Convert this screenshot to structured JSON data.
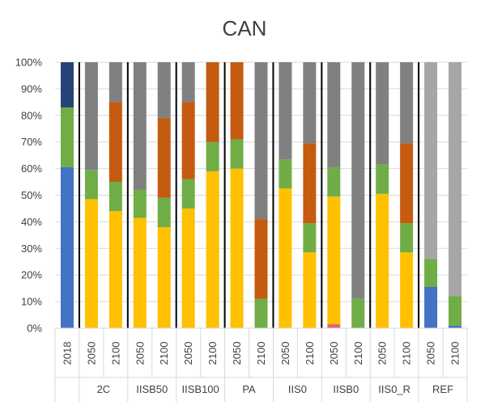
{
  "chart_data": {
    "type": "bar",
    "stacked": "percent",
    "title": "CAN",
    "ylim": [
      0,
      100
    ],
    "y_ticks": [
      "0%",
      "10%",
      "20%",
      "30%",
      "40%",
      "50%",
      "60%",
      "70%",
      "80%",
      "90%",
      "100%"
    ],
    "grid": true,
    "legend": "none",
    "colors": [
      "#4472c4",
      "#e06666",
      "#ffc000",
      "#70ad47",
      "#c55a11",
      "#808080",
      "#a6a6a6",
      "#264478"
    ],
    "categories": [
      {
        "group": "",
        "year": "2018",
        "values": [
          60.5,
          0,
          0,
          22.5,
          0,
          0,
          0,
          17
        ]
      },
      {
        "group": "2C",
        "year": "2050",
        "values": [
          0,
          0,
          48.5,
          11,
          0,
          40.5,
          0,
          0
        ]
      },
      {
        "group": "2C",
        "year": "2100",
        "values": [
          0,
          0,
          44,
          11,
          30,
          15,
          0,
          0
        ]
      },
      {
        "group": "IISB50",
        "year": "2050",
        "values": [
          0,
          0,
          41.5,
          10.5,
          0,
          48,
          0,
          0
        ]
      },
      {
        "group": "IISB50",
        "year": "2100",
        "values": [
          0,
          0,
          38,
          11,
          30,
          21,
          0,
          0
        ]
      },
      {
        "group": "IISB100",
        "year": "2050",
        "values": [
          0,
          0,
          45,
          11,
          29,
          15,
          0,
          0
        ]
      },
      {
        "group": "IISB100",
        "year": "2100",
        "values": [
          0,
          0,
          59,
          11,
          30,
          0,
          0,
          0
        ]
      },
      {
        "group": "PA",
        "year": "2050",
        "values": [
          0,
          0,
          60,
          11,
          29,
          0,
          0,
          0
        ]
      },
      {
        "group": "PA",
        "year": "2100",
        "values": [
          0,
          0,
          0,
          11,
          30,
          59,
          0,
          0
        ]
      },
      {
        "group": "IIS0",
        "year": "2050",
        "values": [
          0,
          0,
          52.5,
          11,
          0,
          36.5,
          0,
          0
        ]
      },
      {
        "group": "IIS0",
        "year": "2100",
        "values": [
          0,
          0,
          28.5,
          11,
          30,
          30.5,
          0,
          0
        ]
      },
      {
        "group": "IISB0",
        "year": "2050",
        "values": [
          0,
          1.5,
          48,
          11,
          0,
          39.5,
          0,
          0
        ]
      },
      {
        "group": "IISB0",
        "year": "2100",
        "values": [
          0,
          0,
          0,
          11,
          0,
          89,
          0,
          0
        ]
      },
      {
        "group": "IIS0_R",
        "year": "2050",
        "values": [
          0,
          0,
          50.5,
          11,
          0,
          38.5,
          0,
          0
        ]
      },
      {
        "group": "IIS0_R",
        "year": "2100",
        "values": [
          0,
          0,
          28.5,
          11,
          30,
          30.5,
          0,
          0
        ]
      },
      {
        "group": "REF",
        "year": "2050",
        "values": [
          15.5,
          0,
          0,
          10.5,
          0,
          0,
          74,
          0
        ]
      },
      {
        "group": "REF",
        "year": "2100",
        "values": [
          1,
          0,
          0,
          11,
          0,
          0,
          88,
          0
        ]
      }
    ],
    "groups": [
      "",
      "2C",
      "IISB50",
      "IISB100",
      "PA",
      "IIS0",
      "IISB0",
      "IIS0_R",
      "REF"
    ]
  }
}
